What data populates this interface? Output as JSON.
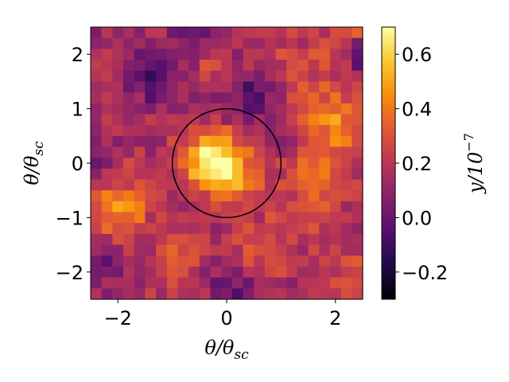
{
  "chart_data": {
    "type": "heatmap",
    "xlabel": "θ/θ",
    "xlabel_sub": "sc",
    "ylabel": "θ/θ",
    "ylabel_sub": "sc",
    "colorbar_label": "y/10",
    "colorbar_label_exp": "−7",
    "xlim": [
      -2.5,
      2.5
    ],
    "ylim": [
      -2.5,
      2.5
    ],
    "x_ticks": [
      -2,
      0,
      2
    ],
    "x_tick_labels": [
      "−2",
      "0",
      "2"
    ],
    "y_ticks": [
      2,
      1,
      0,
      -1,
      -2
    ],
    "y_tick_labels": [
      "2",
      "1",
      "0",
      "−1",
      "−2"
    ],
    "colorbar_range": [
      -0.3,
      0.7
    ],
    "colorbar_ticks": [
      0.6,
      0.4,
      0.2,
      0.0,
      -0.2
    ],
    "colorbar_tick_labels": [
      "0.6",
      "0.4",
      "0.2",
      "0.0",
      "−0.2"
    ],
    "colormap": "inferno",
    "grid": false,
    "grid_size": 25,
    "circle": {
      "center": [
        0,
        0
      ],
      "radius": 1.0
    },
    "features": [
      {
        "x": -0.25,
        "y": 0.05,
        "amp": 0.55,
        "sigma": 0.38
      },
      {
        "x": 0.15,
        "y": -0.25,
        "amp": 0.25,
        "sigma": 0.3
      },
      {
        "x": -1.95,
        "y": -0.8,
        "amp": 0.35,
        "sigma": 0.35
      },
      {
        "x": 1.9,
        "y": 0.8,
        "amp": 0.25,
        "sigma": 0.45
      },
      {
        "x": 1.6,
        "y": -0.4,
        "amp": 0.2,
        "sigma": 0.5
      },
      {
        "x": 2.2,
        "y": 2.3,
        "amp": 0.18,
        "sigma": 0.3
      },
      {
        "x": -0.9,
        "y": -1.8,
        "amp": 0.2,
        "sigma": 0.35
      },
      {
        "x": 1.3,
        "y": 1.8,
        "amp": 0.12,
        "sigma": 0.4
      },
      {
        "x": -0.3,
        "y": 1.9,
        "amp": 0.12,
        "sigma": 0.3
      },
      {
        "x": 0.6,
        "y": -1.5,
        "amp": 0.15,
        "sigma": 0.35
      },
      {
        "x": -1.3,
        "y": 1.6,
        "amp": -0.2,
        "sigma": 0.35
      },
      {
        "x": 0.45,
        "y": 1.2,
        "amp": -0.25,
        "sigma": 0.28
      },
      {
        "x": -0.6,
        "y": 2.2,
        "amp": -0.15,
        "sigma": 0.3
      },
      {
        "x": 0.1,
        "y": -2.3,
        "amp": -0.15,
        "sigma": 0.3
      },
      {
        "x": 2.45,
        "y": 2.0,
        "amp": -0.3,
        "sigma": 0.2
      },
      {
        "x": -2.2,
        "y": -1.8,
        "amp": -0.12,
        "sigma": 0.35
      },
      {
        "x": -2.45,
        "y": 0.0,
        "amp": -0.15,
        "sigma": 0.25
      },
      {
        "x": 1.0,
        "y": 0.2,
        "amp": -0.08,
        "sigma": 0.3
      },
      {
        "x": 2.2,
        "y": -2.0,
        "amp": 0.1,
        "sigma": 0.4
      }
    ],
    "baseline": 0.15
  }
}
